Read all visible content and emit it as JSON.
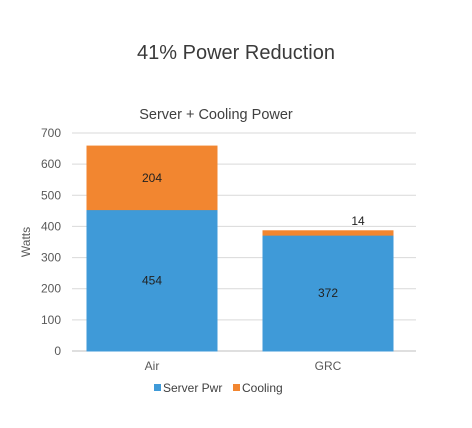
{
  "headline": "41% Power Reduction",
  "chart_data": {
    "type": "bar",
    "stacked": true,
    "title": "Server + Cooling Power",
    "ylabel": "Watts",
    "xlabel": "",
    "ylim": [
      0,
      700
    ],
    "yticks": [
      0,
      100,
      200,
      300,
      400,
      500,
      600,
      700
    ],
    "grid": true,
    "legend": "bottom",
    "categories": [
      "Air",
      "GRC"
    ],
    "series": [
      {
        "name": "Server Pwr",
        "values": [
          454,
          372
        ],
        "color": "#3f9ad8"
      },
      {
        "name": "Cooling",
        "values": [
          204,
          14
        ],
        "color": "#f28630"
      }
    ]
  }
}
